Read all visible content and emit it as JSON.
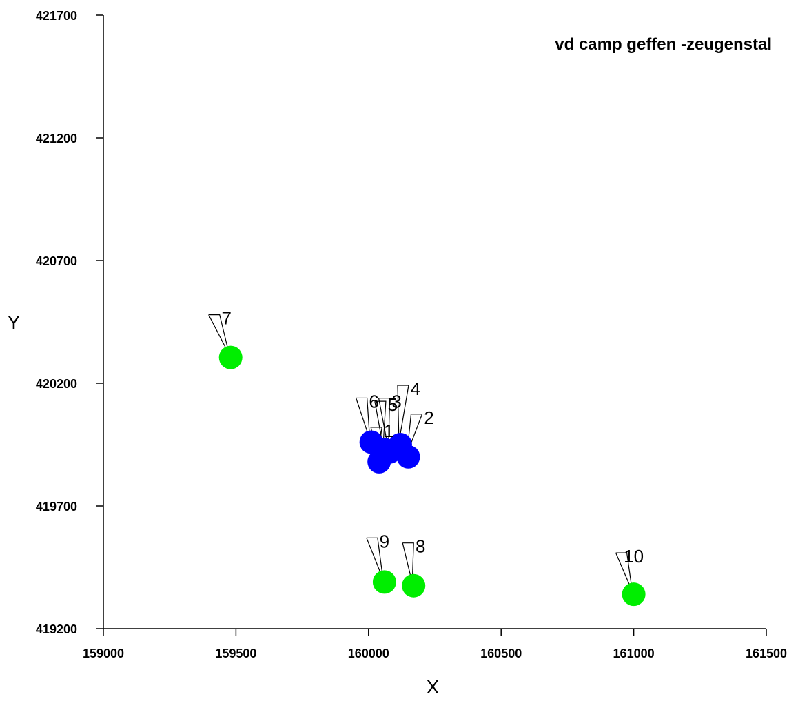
{
  "chart_data": {
    "type": "scatter",
    "title": "vd camp geffen -zeugenstal",
    "xlabel": "X",
    "ylabel": "Y",
    "xlim": [
      159000,
      161500
    ],
    "ylim": [
      419200,
      421700
    ],
    "xticks": [
      159000,
      159500,
      160000,
      160500,
      161000,
      161500
    ],
    "yticks": [
      419200,
      419700,
      420200,
      420700,
      421200,
      421700
    ],
    "xtick_labels": [
      "159000",
      "159500",
      "160000",
      "160500",
      "161000",
      "161500"
    ],
    "ytick_labels": [
      "419200",
      "419700",
      "420200",
      "420700",
      "421200",
      "421700"
    ],
    "grid": false,
    "series": [
      {
        "color": "#0000ff",
        "points": [
          {
            "label": "1",
            "x": 160040,
            "y": 419880
          },
          {
            "label": "2",
            "x": 160150,
            "y": 419900
          },
          {
            "label": "3",
            "x": 160080,
            "y": 419920
          },
          {
            "label": "4",
            "x": 160120,
            "y": 419950
          },
          {
            "label": "5",
            "x": 160060,
            "y": 419930
          },
          {
            "label": "6",
            "x": 160010,
            "y": 419960
          }
        ]
      },
      {
        "color": "#00ee00",
        "points": [
          {
            "label": "7",
            "x": 159480,
            "y": 420305
          },
          {
            "label": "8",
            "x": 160170,
            "y": 419375
          },
          {
            "label": "9",
            "x": 160060,
            "y": 419390
          },
          {
            "label": "10",
            "x": 161000,
            "y": 419340
          }
        ]
      }
    ]
  }
}
